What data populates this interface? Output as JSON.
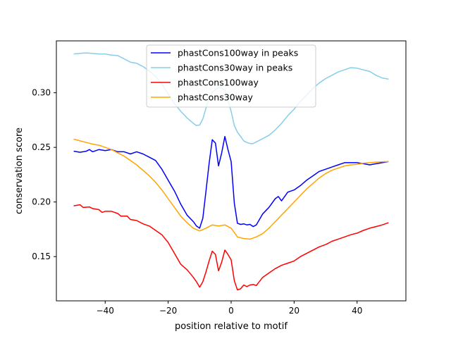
{
  "chart_data": {
    "type": "line",
    "xlabel": "position relative to motif",
    "ylabel": "conservation score",
    "xlim": [
      -55.5,
      55.5
    ],
    "ylim": [
      0.1095,
      0.3475
    ],
    "xticks": [
      -40,
      -20,
      0,
      20,
      40
    ],
    "xtick_labels": [
      "−40",
      "−20",
      "0",
      "20",
      "40"
    ],
    "yticks": [
      0.15,
      0.2,
      0.25,
      0.3
    ],
    "ytick_labels": [
      "0.15",
      "0.20",
      "0.25",
      "0.30"
    ],
    "grid": false,
    "legend": "top-center",
    "series": [
      {
        "name": "phastCons100way in peaks",
        "color": "#0000ff",
        "points": [
          [
            -50,
            0.2465
          ],
          [
            -48,
            0.2455
          ],
          [
            -46,
            0.2465
          ],
          [
            -45,
            0.248
          ],
          [
            -44,
            0.246
          ],
          [
            -42,
            0.248
          ],
          [
            -40,
            0.247
          ],
          [
            -38,
            0.248
          ],
          [
            -36,
            0.246
          ],
          [
            -34,
            0.246
          ],
          [
            -32,
            0.244
          ],
          [
            -30,
            0.246
          ],
          [
            -28,
            0.244
          ],
          [
            -26,
            0.241
          ],
          [
            -24,
            0.238
          ],
          [
            -22,
            0.23
          ],
          [
            -20,
            0.22
          ],
          [
            -18,
            0.21
          ],
          [
            -16,
            0.198
          ],
          [
            -14,
            0.188
          ],
          [
            -12,
            0.182
          ],
          [
            -11,
            0.178
          ],
          [
            -10,
            0.176
          ],
          [
            -9,
            0.185
          ],
          [
            -8,
            0.21
          ],
          [
            -7,
            0.235
          ],
          [
            -6,
            0.257
          ],
          [
            -5,
            0.254
          ],
          [
            -4,
            0.233
          ],
          [
            -3,
            0.245
          ],
          [
            -2,
            0.26
          ],
          [
            -1,
            0.248
          ],
          [
            0,
            0.237
          ],
          [
            1,
            0.199
          ],
          [
            2,
            0.1805
          ],
          [
            3,
            0.1795
          ],
          [
            4,
            0.18
          ],
          [
            5,
            0.179
          ],
          [
            6,
            0.1795
          ],
          [
            7,
            0.1775
          ],
          [
            8,
            0.179
          ],
          [
            10,
            0.189
          ],
          [
            12,
            0.195
          ],
          [
            14,
            0.203
          ],
          [
            15,
            0.205
          ],
          [
            16,
            0.201
          ],
          [
            18,
            0.209
          ],
          [
            20,
            0.211
          ],
          [
            22,
            0.215
          ],
          [
            24,
            0.22
          ],
          [
            26,
            0.224
          ],
          [
            28,
            0.228
          ],
          [
            30,
            0.23
          ],
          [
            32,
            0.232
          ],
          [
            34,
            0.234
          ],
          [
            36,
            0.236
          ],
          [
            38,
            0.236
          ],
          [
            40,
            0.236
          ],
          [
            42,
            0.235
          ],
          [
            44,
            0.234
          ],
          [
            46,
            0.235
          ],
          [
            48,
            0.236
          ],
          [
            50,
            0.237
          ]
        ]
      },
      {
        "name": "phastCons30way in peaks",
        "color": "#87ceeb",
        "points": [
          [
            -50,
            0.3355
          ],
          [
            -48,
            0.336
          ],
          [
            -46,
            0.3365
          ],
          [
            -44,
            0.336
          ],
          [
            -42,
            0.3355
          ],
          [
            -40,
            0.3355
          ],
          [
            -38,
            0.3345
          ],
          [
            -36,
            0.334
          ],
          [
            -34,
            0.331
          ],
          [
            -32,
            0.328
          ],
          [
            -30,
            0.327
          ],
          [
            -28,
            0.324
          ],
          [
            -26,
            0.32
          ],
          [
            -24,
            0.315
          ],
          [
            -22,
            0.308
          ],
          [
            -20,
            0.299
          ],
          [
            -18,
            0.29
          ],
          [
            -16,
            0.283
          ],
          [
            -14,
            0.277
          ],
          [
            -12,
            0.272
          ],
          [
            -11,
            0.27
          ],
          [
            -10,
            0.2705
          ],
          [
            -9,
            0.276
          ],
          [
            -8,
            0.286
          ],
          [
            -7,
            0.295
          ],
          [
            -6,
            0.3
          ],
          [
            -5,
            0.303
          ],
          [
            -4,
            0.305
          ],
          [
            -3,
            0.304
          ],
          [
            -2,
            0.302
          ],
          [
            -1,
            0.293
          ],
          [
            0,
            0.283
          ],
          [
            1,
            0.27
          ],
          [
            2,
            0.264
          ],
          [
            3,
            0.26
          ],
          [
            4,
            0.256
          ],
          [
            5,
            0.2545
          ],
          [
            6,
            0.2535
          ],
          [
            7,
            0.2535
          ],
          [
            8,
            0.255
          ],
          [
            10,
            0.258
          ],
          [
            12,
            0.261
          ],
          [
            14,
            0.266
          ],
          [
            16,
            0.272
          ],
          [
            18,
            0.279
          ],
          [
            20,
            0.285
          ],
          [
            22,
            0.292
          ],
          [
            24,
            0.298
          ],
          [
            26,
            0.304
          ],
          [
            28,
            0.309
          ],
          [
            30,
            0.313
          ],
          [
            32,
            0.316
          ],
          [
            34,
            0.319
          ],
          [
            36,
            0.321
          ],
          [
            38,
            0.323
          ],
          [
            40,
            0.3225
          ],
          [
            42,
            0.321
          ],
          [
            44,
            0.3195
          ],
          [
            46,
            0.316
          ],
          [
            48,
            0.3135
          ],
          [
            50,
            0.3125
          ]
        ]
      },
      {
        "name": "phastCons100way",
        "color": "#ff0000",
        "points": [
          [
            -50,
            0.1965
          ],
          [
            -48,
            0.1975
          ],
          [
            -47,
            0.195
          ],
          [
            -45,
            0.1955
          ],
          [
            -44,
            0.194
          ],
          [
            -42,
            0.193
          ],
          [
            -41,
            0.1905
          ],
          [
            -40,
            0.1915
          ],
          [
            -38,
            0.1915
          ],
          [
            -36,
            0.1895
          ],
          [
            -35,
            0.187
          ],
          [
            -33,
            0.187
          ],
          [
            -32,
            0.184
          ],
          [
            -30,
            0.183
          ],
          [
            -28,
            0.18
          ],
          [
            -26,
            0.178
          ],
          [
            -24,
            0.174
          ],
          [
            -22,
            0.17
          ],
          [
            -20,
            0.163
          ],
          [
            -18,
            0.153
          ],
          [
            -16,
            0.143
          ],
          [
            -14,
            0.138
          ],
          [
            -12,
            0.131
          ],
          [
            -11,
            0.127
          ],
          [
            -10,
            0.122
          ],
          [
            -9,
            0.127
          ],
          [
            -8,
            0.136
          ],
          [
            -7,
            0.146
          ],
          [
            -6,
            0.155
          ],
          [
            -5,
            0.152
          ],
          [
            -4,
            0.137
          ],
          [
            -3,
            0.145
          ],
          [
            -2,
            0.156
          ],
          [
            -1,
            0.152
          ],
          [
            0,
            0.147
          ],
          [
            1,
            0.128
          ],
          [
            2,
            0.1195
          ],
          [
            3,
            0.1205
          ],
          [
            4,
            0.124
          ],
          [
            5,
            0.1225
          ],
          [
            6,
            0.124
          ],
          [
            7,
            0.1245
          ],
          [
            8,
            0.1235
          ],
          [
            10,
            0.131
          ],
          [
            12,
            0.135
          ],
          [
            14,
            0.139
          ],
          [
            16,
            0.142
          ],
          [
            18,
            0.144
          ],
          [
            20,
            0.146
          ],
          [
            22,
            0.15
          ],
          [
            24,
            0.153
          ],
          [
            26,
            0.156
          ],
          [
            28,
            0.159
          ],
          [
            30,
            0.161
          ],
          [
            32,
            0.164
          ],
          [
            34,
            0.166
          ],
          [
            36,
            0.168
          ],
          [
            38,
            0.17
          ],
          [
            40,
            0.1715
          ],
          [
            42,
            0.174
          ],
          [
            44,
            0.176
          ],
          [
            46,
            0.1775
          ],
          [
            48,
            0.179
          ],
          [
            50,
            0.181
          ]
        ]
      },
      {
        "name": "phastCons30way",
        "color": "#ffa500",
        "points": [
          [
            -50,
            0.2575
          ],
          [
            -48,
            0.256
          ],
          [
            -46,
            0.2545
          ],
          [
            -44,
            0.253
          ],
          [
            -42,
            0.252
          ],
          [
            -40,
            0.25
          ],
          [
            -38,
            0.248
          ],
          [
            -36,
            0.245
          ],
          [
            -34,
            0.242
          ],
          [
            -32,
            0.238
          ],
          [
            -30,
            0.234
          ],
          [
            -28,
            0.229
          ],
          [
            -26,
            0.224
          ],
          [
            -24,
            0.218
          ],
          [
            -22,
            0.211
          ],
          [
            -20,
            0.203
          ],
          [
            -18,
            0.195
          ],
          [
            -16,
            0.187
          ],
          [
            -14,
            0.181
          ],
          [
            -12,
            0.176
          ],
          [
            -10,
            0.1735
          ],
          [
            -8,
            0.176
          ],
          [
            -6,
            0.179
          ],
          [
            -4,
            0.178
          ],
          [
            -2,
            0.179
          ],
          [
            0,
            0.176
          ],
          [
            1,
            0.172
          ],
          [
            2,
            0.168
          ],
          [
            4,
            0.1665
          ],
          [
            6,
            0.166
          ],
          [
            8,
            0.168
          ],
          [
            10,
            0.171
          ],
          [
            12,
            0.176
          ],
          [
            14,
            0.182
          ],
          [
            16,
            0.188
          ],
          [
            18,
            0.194
          ],
          [
            20,
            0.2
          ],
          [
            22,
            0.206
          ],
          [
            24,
            0.212
          ],
          [
            26,
            0.217
          ],
          [
            28,
            0.222
          ],
          [
            30,
            0.226
          ],
          [
            32,
            0.229
          ],
          [
            34,
            0.231
          ],
          [
            36,
            0.233
          ],
          [
            38,
            0.234
          ],
          [
            40,
            0.2345
          ],
          [
            42,
            0.2355
          ],
          [
            44,
            0.236
          ],
          [
            46,
            0.2365
          ],
          [
            48,
            0.2368
          ],
          [
            50,
            0.237
          ]
        ]
      }
    ]
  }
}
